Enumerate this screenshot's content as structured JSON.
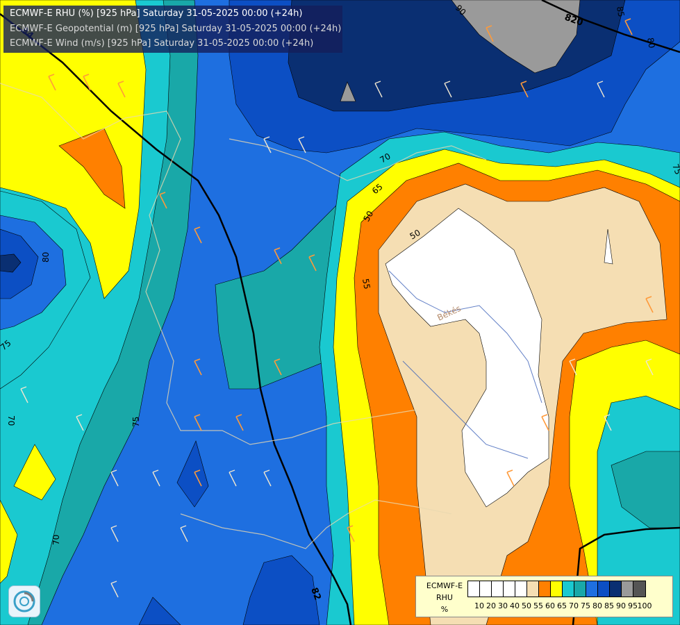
{
  "titles": {
    "line1": "ECMWF-E RHU (%) [925 hPa] Saturday 31-05-2025 00:00 (+24h)",
    "line2": "ECMWF-E Geopotential (m) [925 hPa] Saturday 31-05-2025 00:00 (+24h)",
    "line3": "ECMWF-E Wind (m/s) [925 hPa] Saturday 31-05-2025 00:00 (+24h)"
  },
  "legend": {
    "model": "ECMWF-E",
    "variable": "RHU",
    "unit": "%",
    "ticks": [
      "10",
      "20",
      "30",
      "40",
      "50",
      "55",
      "60",
      "65",
      "70",
      "75",
      "80",
      "85",
      "90",
      "95",
      "100"
    ],
    "colors": [
      "#ffffff",
      "#ffffff",
      "#ffffff",
      "#ffffff",
      "#ffffff",
      "#f5deb3",
      "#ff8000",
      "#ffff00",
      "#1ac9d0",
      "#19a8a8",
      "#1e6fe0",
      "#0c4fc4",
      "#0a2f72",
      "#9a9a9a",
      "#555555"
    ]
  },
  "contour_labels": {
    "rhu": [
      "50",
      "50",
      "55",
      "65",
      "70",
      "75",
      "75",
      "75",
      "70",
      "70",
      "80",
      "80",
      "90",
      "85"
    ],
    "geopotential": [
      "820",
      "84",
      "82"
    ]
  },
  "place_labels": [
    "Békés"
  ],
  "palette": {
    "white": "#ffffff",
    "wheat": "#f5deb3",
    "orange": "#ff8000",
    "yellow": "#ffff00",
    "cyan": "#1ac9d0",
    "teal": "#19a8a8",
    "blue": "#1e6fe0",
    "dark_blue": "#0c4fc4",
    "navy": "#0a2f72",
    "gray": "#9a9a9a"
  }
}
